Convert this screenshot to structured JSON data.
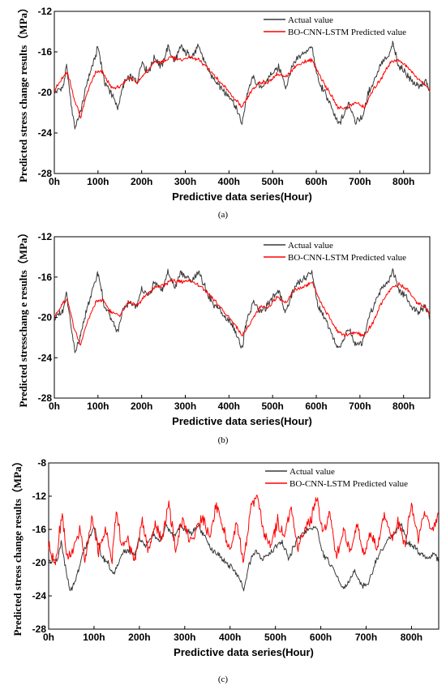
{
  "colors": {
    "actual": "#3a3a3a",
    "predicted": "#ff0000",
    "axis": "#000000"
  },
  "chart_data": [
    {
      "type": "line",
      "caption": "(a)",
      "xlabel": "Predictive data series(Hour)",
      "ylabel": "Predicted stress change results（MPa）",
      "xlim": [
        0,
        860
      ],
      "ylim": [
        -28,
        -12
      ],
      "xticks": [
        0,
        100,
        200,
        300,
        400,
        500,
        600,
        700,
        800
      ],
      "xtick_labels": [
        "0h",
        "100h",
        "200h",
        "300h",
        "400h",
        "500h",
        "600h",
        "700h",
        "800h"
      ],
      "yticks": [
        -28,
        -24,
        -20,
        -16,
        -12
      ],
      "legend": "top-right",
      "series": [
        {
          "name": "Actual value",
          "key": "actual",
          "x": [
            0,
            20,
            28,
            40,
            47,
            60,
            75,
            90,
            100,
            115,
            130,
            145,
            160,
            175,
            190,
            200,
            215,
            230,
            245,
            260,
            275,
            290,
            300,
            315,
            330,
            345,
            360,
            375,
            390,
            405,
            420,
            430,
            440,
            455,
            470,
            485,
            500,
            515,
            530,
            545,
            560,
            575,
            590,
            605,
            620,
            635,
            650,
            660,
            675,
            690,
            705,
            720,
            735,
            750,
            765,
            775,
            790,
            805,
            820,
            835,
            850,
            860
          ],
          "y": [
            -20,
            -19.5,
            -17.5,
            -21.5,
            -23.5,
            -22,
            -19,
            -17,
            -15.5,
            -19,
            -20,
            -21.5,
            -19,
            -18.5,
            -19,
            -17,
            -18,
            -16.5,
            -17.5,
            -15.5,
            -17,
            -15.5,
            -16,
            -16.5,
            -15.5,
            -17,
            -18.5,
            -19,
            -20,
            -20.5,
            -22,
            -23.2,
            -20.5,
            -18.5,
            -19.5,
            -19,
            -18,
            -17.5,
            -19.5,
            -17.5,
            -16.5,
            -16,
            -15.5,
            -19,
            -20,
            -21.5,
            -23.2,
            -22.5,
            -21,
            -22.8,
            -22.5,
            -20,
            -18.5,
            -17,
            -16.5,
            -15.2,
            -17.5,
            -18,
            -19,
            -19.5,
            -18.8,
            -20
          ]
        },
        {
          "name": "BO-CNN-LSTM Predicted value",
          "key": "predicted",
          "x": [
            0,
            20,
            30,
            45,
            60,
            75,
            95,
            110,
            130,
            150,
            170,
            190,
            210,
            230,
            250,
            270,
            290,
            310,
            330,
            350,
            370,
            390,
            410,
            430,
            450,
            470,
            490,
            510,
            530,
            550,
            570,
            590,
            610,
            630,
            650,
            670,
            690,
            710,
            730,
            750,
            770,
            790,
            810,
            830,
            850,
            860
          ],
          "y": [
            -19.8,
            -18.5,
            -18,
            -20.5,
            -22.5,
            -20,
            -18,
            -18,
            -19.5,
            -19.5,
            -18.5,
            -19,
            -18,
            -17,
            -17,
            -16.5,
            -16.8,
            -16.5,
            -16.8,
            -17.5,
            -18.5,
            -19.5,
            -20.5,
            -21.5,
            -20,
            -19,
            -19,
            -18.2,
            -18.5,
            -17.5,
            -17,
            -16.8,
            -18.5,
            -20,
            -21.5,
            -21.5,
            -21,
            -21.5,
            -19.8,
            -18.5,
            -17,
            -16.8,
            -17.5,
            -18.5,
            -19.3,
            -19.8
          ]
        }
      ]
    },
    {
      "type": "line",
      "caption": "(b)",
      "xlabel": "Predictive data series(Hour)",
      "ylabel": "Predicted stresschang e results（MPa）",
      "xlim": [
        0,
        860
      ],
      "ylim": [
        -28,
        -12
      ],
      "xticks": [
        0,
        100,
        200,
        300,
        400,
        500,
        600,
        700,
        800
      ],
      "xtick_labels": [
        "0h",
        "100h",
        "200h",
        "300h",
        "400h",
        "500h",
        "600h",
        "700h",
        "800h"
      ],
      "yticks": [
        -28,
        -24,
        -20,
        -16,
        -12
      ],
      "legend": "top-right",
      "series": [
        {
          "name": "Actual value",
          "key": "actual",
          "x": [
            0,
            20,
            28,
            40,
            47,
            60,
            75,
            90,
            100,
            115,
            130,
            145,
            160,
            175,
            190,
            200,
            215,
            230,
            245,
            260,
            275,
            290,
            300,
            315,
            330,
            345,
            360,
            375,
            390,
            405,
            420,
            430,
            440,
            455,
            470,
            485,
            500,
            515,
            530,
            545,
            560,
            575,
            590,
            605,
            620,
            635,
            650,
            660,
            675,
            690,
            705,
            720,
            735,
            750,
            765,
            775,
            790,
            805,
            820,
            835,
            850,
            860
          ],
          "y": [
            -20,
            -19.5,
            -17.5,
            -21.5,
            -23.5,
            -22,
            -19,
            -17,
            -15.5,
            -19,
            -20,
            -21.5,
            -19,
            -18.5,
            -19,
            -17,
            -18,
            -16.5,
            -17.5,
            -15.5,
            -17,
            -15.5,
            -16,
            -16.5,
            -15.5,
            -17,
            -18.5,
            -19,
            -20,
            -20.5,
            -22,
            -23.2,
            -20.5,
            -18.5,
            -19.5,
            -19,
            -18,
            -17.5,
            -19.5,
            -17.5,
            -16.5,
            -16,
            -15.5,
            -19,
            -20,
            -21.5,
            -23.2,
            -22.5,
            -21,
            -22.8,
            -22.5,
            -20,
            -18.5,
            -17,
            -16.5,
            -15.2,
            -17.5,
            -18,
            -19,
            -19.5,
            -18.8,
            -20
          ]
        },
        {
          "name": "BO-CNN-LSTM Predicted value",
          "key": "predicted",
          "x": [
            0,
            20,
            30,
            45,
            60,
            75,
            95,
            110,
            130,
            150,
            170,
            190,
            210,
            230,
            250,
            270,
            290,
            310,
            330,
            350,
            370,
            390,
            410,
            430,
            450,
            470,
            490,
            510,
            530,
            550,
            570,
            590,
            610,
            630,
            650,
            670,
            690,
            710,
            730,
            750,
            770,
            790,
            810,
            830,
            850,
            860
          ],
          "y": [
            -20,
            -18.5,
            -18.2,
            -21,
            -22.8,
            -20.5,
            -18.5,
            -18.2,
            -19.5,
            -19.8,
            -18.5,
            -18.8,
            -17.8,
            -17,
            -16.8,
            -16.3,
            -16.5,
            -16.3,
            -16.8,
            -17.5,
            -18.5,
            -19.5,
            -20.5,
            -21.8,
            -20.5,
            -19,
            -19,
            -18,
            -18.5,
            -17.3,
            -17,
            -16.5,
            -18.5,
            -20,
            -21.5,
            -21.8,
            -21.5,
            -21.8,
            -20.5,
            -18.5,
            -17.2,
            -16.7,
            -17.3,
            -18.5,
            -19,
            -19.8
          ]
        }
      ]
    },
    {
      "type": "line",
      "caption": "(c)",
      "xlabel": "Predictive data series(Hour)",
      "ylabel": "Predicted stress change results（MPa）",
      "xlim": [
        0,
        860
      ],
      "ylim": [
        -28,
        -8
      ],
      "xticks": [
        0,
        100,
        200,
        300,
        400,
        500,
        600,
        700,
        800
      ],
      "xtick_labels": [
        "0h",
        "100h",
        "200h",
        "300h",
        "400h",
        "500h",
        "600h",
        "700h",
        "800h"
      ],
      "yticks": [
        -28,
        -24,
        -20,
        -16,
        -12,
        -8
      ],
      "legend": "top-right",
      "series": [
        {
          "name": "Actual value",
          "key": "actual",
          "x": [
            0,
            20,
            28,
            40,
            47,
            60,
            75,
            90,
            100,
            115,
            130,
            145,
            160,
            175,
            190,
            200,
            215,
            230,
            245,
            260,
            275,
            290,
            300,
            315,
            330,
            345,
            360,
            375,
            390,
            405,
            420,
            430,
            440,
            455,
            470,
            485,
            500,
            515,
            530,
            545,
            560,
            575,
            590,
            605,
            620,
            635,
            650,
            660,
            675,
            690,
            705,
            720,
            735,
            750,
            765,
            775,
            790,
            805,
            820,
            835,
            850,
            860
          ],
          "y": [
            -20,
            -19.5,
            -17.5,
            -21.5,
            -23.5,
            -22,
            -19,
            -17,
            -15.5,
            -19,
            -20,
            -21.5,
            -19,
            -18.5,
            -19,
            -17,
            -18,
            -16.5,
            -17.5,
            -15.5,
            -17,
            -15.5,
            -16,
            -16.5,
            -15.5,
            -17,
            -18.5,
            -19,
            -20,
            -20.5,
            -22,
            -23.2,
            -20.5,
            -18.5,
            -19.5,
            -19,
            -18,
            -17.5,
            -19.5,
            -17.5,
            -16.5,
            -16,
            -15.5,
            -19,
            -20,
            -21.5,
            -23.2,
            -22.5,
            -21,
            -22.8,
            -22.5,
            -20,
            -18.5,
            -17,
            -16.5,
            -15.2,
            -17.5,
            -18,
            -19,
            -19.5,
            -18.8,
            -20
          ]
        },
        {
          "name": "BO-CNN-LSTM Predicted value",
          "key": "predicted",
          "x": [
            0,
            15,
            30,
            40,
            55,
            70,
            80,
            95,
            110,
            125,
            140,
            150,
            160,
            175,
            190,
            205,
            220,
            235,
            250,
            265,
            280,
            295,
            310,
            325,
            340,
            355,
            370,
            385,
            400,
            415,
            430,
            445,
            460,
            475,
            490,
            505,
            520,
            535,
            550,
            565,
            580,
            590,
            605,
            620,
            635,
            650,
            665,
            680,
            695,
            710,
            725,
            740,
            755,
            770,
            785,
            800,
            815,
            830,
            845,
            860
          ],
          "y": [
            -18,
            -20,
            -14,
            -19.5,
            -18.5,
            -16,
            -20,
            -14.5,
            -18.5,
            -16,
            -19.5,
            -13.5,
            -18,
            -17,
            -20,
            -15,
            -18.5,
            -15.5,
            -17,
            -13,
            -18.5,
            -14.5,
            -17.5,
            -16,
            -14.5,
            -17,
            -13,
            -16,
            -18.5,
            -15,
            -20,
            -13.5,
            -12,
            -16.5,
            -18,
            -15,
            -17,
            -13.5,
            -18.5,
            -16,
            -14.5,
            -12,
            -16.5,
            -14,
            -19.5,
            -16,
            -18.5,
            -15.5,
            -19,
            -16.5,
            -18,
            -14,
            -17.5,
            -15,
            -18,
            -13,
            -17,
            -14,
            -16,
            -14
          ]
        }
      ]
    }
  ]
}
